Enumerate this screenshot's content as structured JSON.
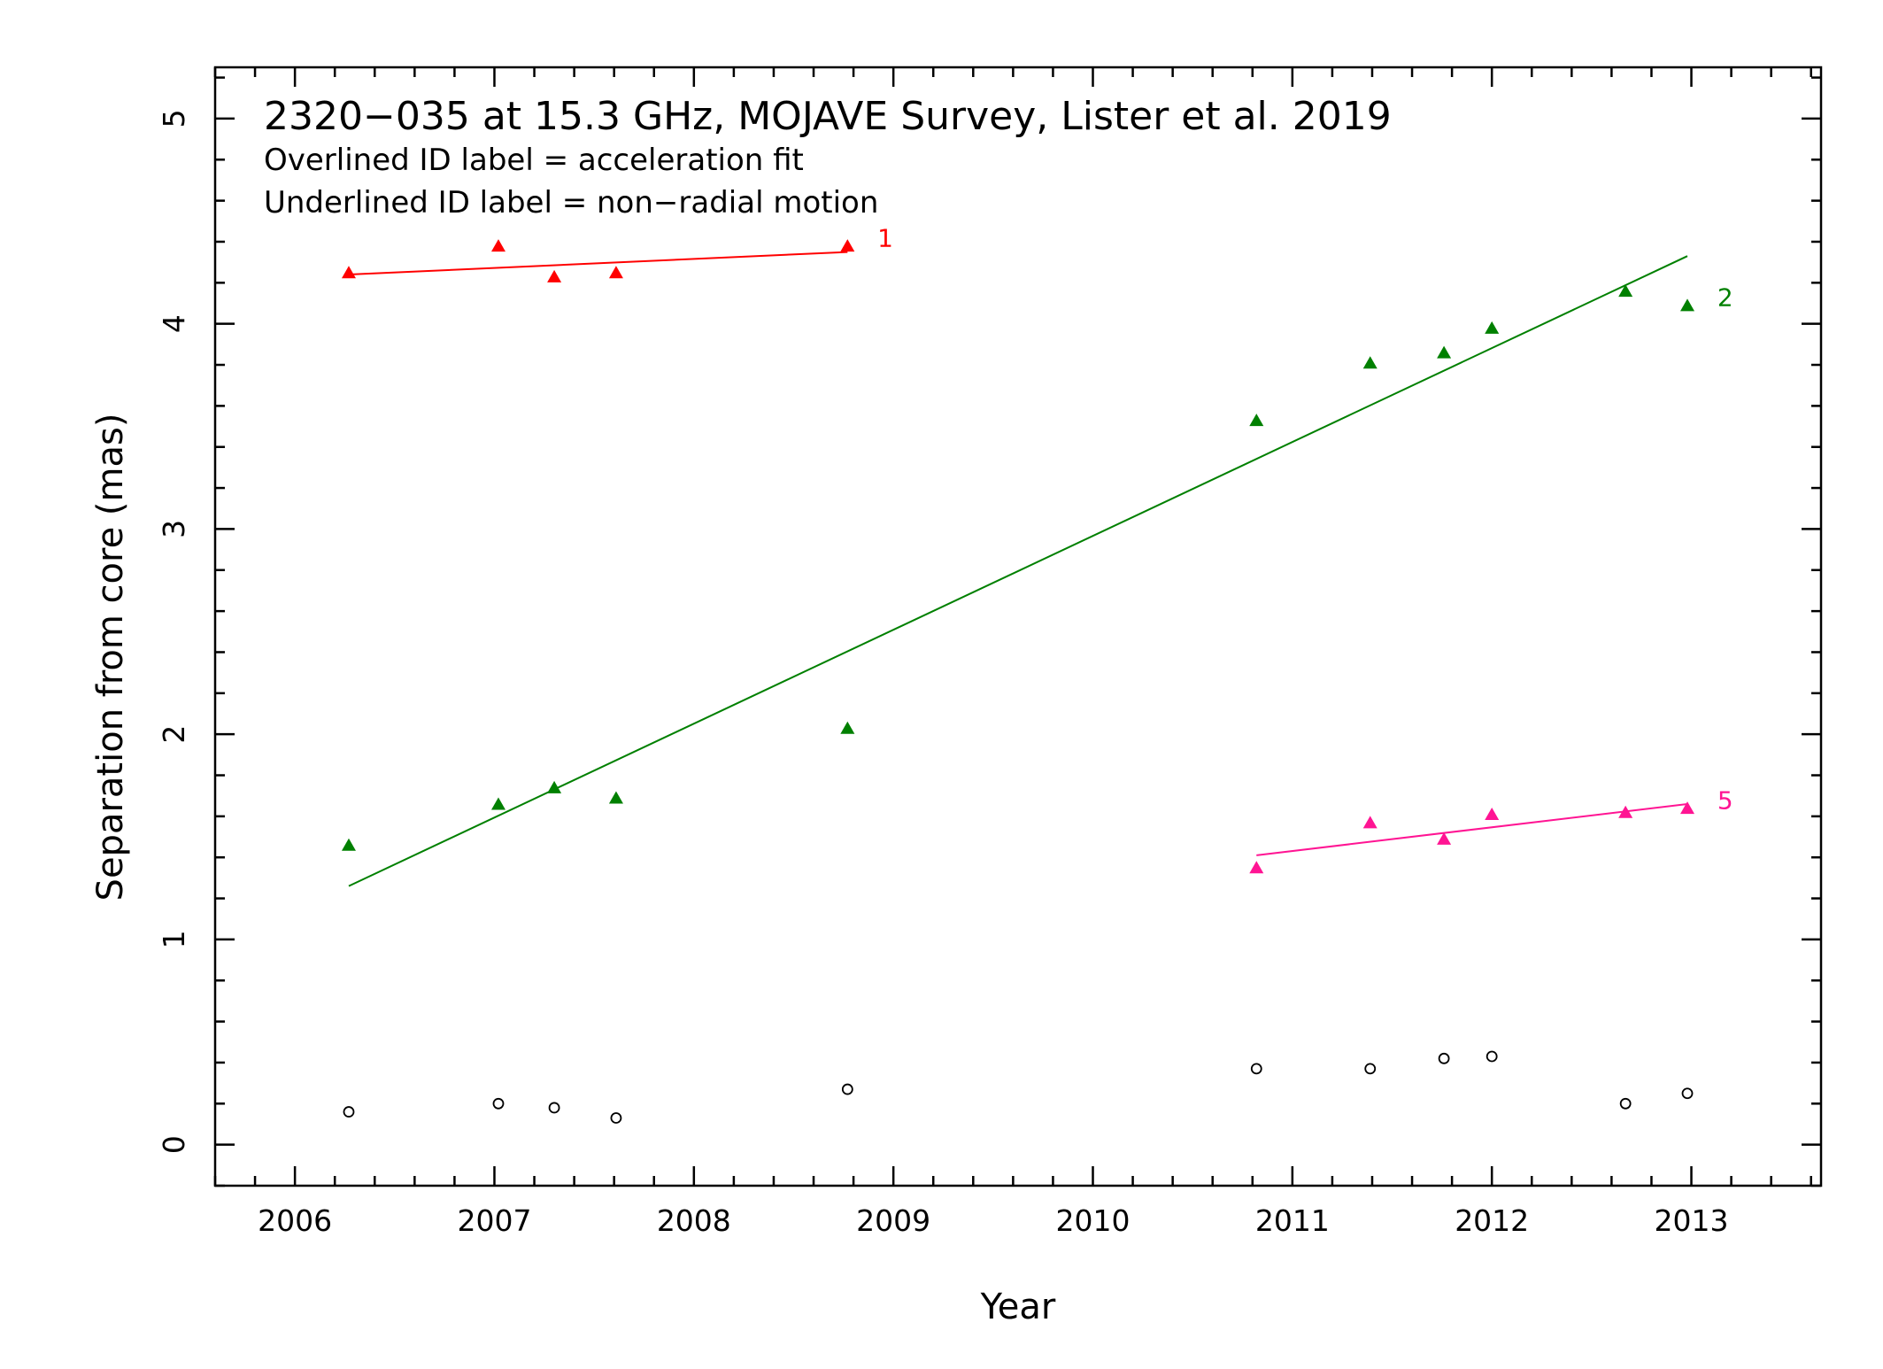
{
  "chart_data": {
    "type": "scatter",
    "title": "2320−035 at 15.3 GHz, MOJAVE Survey, Lister et al. 2019",
    "subtitle_lines": [
      "Overlined ID label = acceleration fit",
      "Underlined ID label = non−radial motion"
    ],
    "xlabel": "Year",
    "ylabel": "Separation from core (mas)",
    "xlim": [
      2005.6,
      2013.65
    ],
    "ylim": [
      -0.2,
      5.25
    ],
    "xticks": [
      2006,
      2007,
      2008,
      2009,
      2010,
      2011,
      2012,
      2013
    ],
    "yticks": [
      0,
      1,
      2,
      3,
      4,
      5
    ],
    "grid": false,
    "series": [
      {
        "name": "1",
        "color": "#ff0000",
        "marker": "triangle",
        "x": [
          2006.27,
          2007.02,
          2007.3,
          2007.61,
          2008.77
        ],
        "y": [
          4.25,
          4.38,
          4.23,
          4.25,
          4.38
        ],
        "fit": {
          "x": [
            2006.27,
            2008.77
          ],
          "y": [
            4.24,
            4.35
          ]
        },
        "label_pos": [
          2008.92,
          4.42
        ]
      },
      {
        "name": "2",
        "color": "#008000",
        "marker": "triangle",
        "x": [
          2006.27,
          2007.02,
          2007.3,
          2007.61,
          2008.77,
          2010.82,
          2011.39,
          2011.76,
          2012.0,
          2012.67,
          2012.98
        ],
        "y": [
          1.46,
          1.66,
          1.74,
          1.69,
          2.03,
          3.53,
          3.81,
          3.86,
          3.98,
          4.16,
          4.09
        ],
        "fit": {
          "x": [
            2006.27,
            2012.98
          ],
          "y": [
            1.26,
            4.33
          ]
        },
        "label_pos": [
          2013.13,
          4.13
        ]
      },
      {
        "name": "5",
        "color": "#ff1493",
        "marker": "triangle",
        "x": [
          2010.82,
          2011.39,
          2011.76,
          2012.0,
          2012.67,
          2012.98
        ],
        "y": [
          1.35,
          1.57,
          1.49,
          1.61,
          1.62,
          1.64
        ],
        "fit": {
          "x": [
            2010.82,
            2012.98
          ],
          "y": [
            1.41,
            1.66
          ]
        },
        "label_pos": [
          2013.13,
          1.68
        ]
      },
      {
        "name": "",
        "color": "#000000",
        "marker": "circle-open",
        "x": [
          2006.27,
          2007.02,
          2007.3,
          2007.61,
          2008.77,
          2010.82,
          2011.39,
          2011.76,
          2012.0,
          2012.67,
          2012.98
        ],
        "y": [
          0.16,
          0.2,
          0.18,
          0.13,
          0.27,
          0.37,
          0.37,
          0.42,
          0.43,
          0.2,
          0.25
        ]
      }
    ]
  }
}
